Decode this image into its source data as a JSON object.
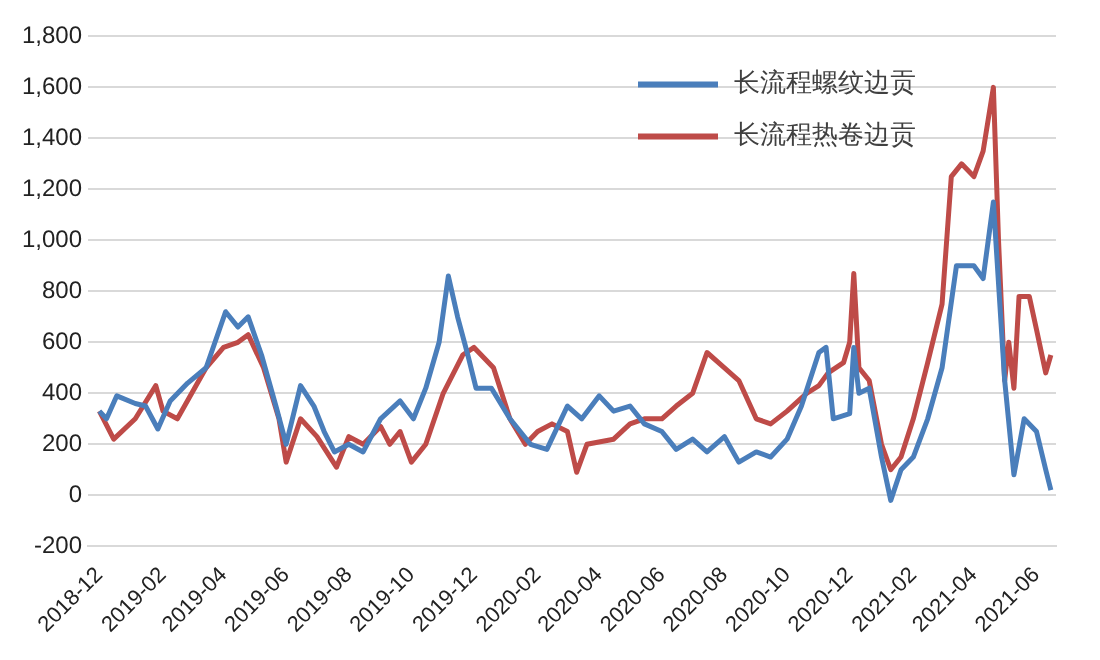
{
  "chart_data": {
    "type": "line",
    "xlim": [
      "2018-11-20",
      "2021-06-20"
    ],
    "xticks": [
      "2018-12",
      "2019-02",
      "2019-04",
      "2019-06",
      "2019-08",
      "2019-10",
      "2019-12",
      "2020-02",
      "2020-04",
      "2020-06",
      "2020-08",
      "2020-10",
      "2020-12",
      "2021-02",
      "2021-04",
      "2021-06"
    ],
    "ylim": [
      -200,
      1800
    ],
    "yticks": [
      -200,
      0,
      200,
      400,
      600,
      800,
      {
        "value": 1000,
        "label": "1,000"
      },
      {
        "value": 1200,
        "label": "1,200"
      },
      {
        "value": 1400,
        "label": "1,400"
      },
      {
        "value": 1600,
        "label": "1,600"
      },
      {
        "value": 1800,
        "label": "1,800"
      }
    ],
    "grid": "y",
    "legend": "top right",
    "marker": "none",
    "line_style": "solid",
    "series": [
      {
        "name": "长流程螺纹边贡",
        "color": "#4a7ebb",
        "x": [
          "2018-12-01",
          "2018-12-08",
          "2018-12-18",
          "2019-01-05",
          "2019-01-15",
          "2019-01-27",
          "2019-02-08",
          "2019-02-25",
          "2019-03-15",
          "2019-04-03",
          "2019-04-15",
          "2019-04-25",
          "2019-05-08",
          "2019-05-22",
          "2019-06-01",
          "2019-06-15",
          "2019-06-28",
          "2019-07-08",
          "2019-07-18",
          "2019-08-01",
          "2019-08-15",
          "2019-09-01",
          "2019-09-20",
          "2019-10-03",
          "2019-10-15",
          "2019-10-28",
          "2019-11-06",
          "2019-11-15",
          "2019-11-25",
          "2019-12-03",
          "2019-12-18",
          "2020-01-05",
          "2020-01-25",
          "2020-02-10",
          "2020-03-01",
          "2020-03-15",
          "2020-04-01",
          "2020-04-15",
          "2020-05-01",
          "2020-05-15",
          "2020-06-01",
          "2020-06-15",
          "2020-07-01",
          "2020-07-15",
          "2020-08-01",
          "2020-08-15",
          "2020-09-01",
          "2020-09-15",
          "2020-10-01",
          "2020-10-15",
          "2020-11-01",
          "2020-11-08",
          "2020-11-15",
          "2020-12-01",
          "2020-12-05",
          "2020-12-10",
          "2020-12-20",
          "2021-01-01",
          "2021-01-10",
          "2021-01-20",
          "2021-02-01",
          "2021-02-15",
          "2021-03-01",
          "2021-03-15",
          "2021-04-01",
          "2021-04-10",
          "2021-04-20",
          "2021-05-01",
          "2021-05-10",
          "2021-05-20",
          "2021-06-01",
          "2021-06-10",
          "2021-06-15"
        ],
        "values": [
          330,
          300,
          390,
          360,
          350,
          260,
          370,
          440,
          500,
          720,
          660,
          700,
          550,
          350,
          200,
          430,
          350,
          250,
          170,
          200,
          170,
          300,
          370,
          300,
          420,
          600,
          860,
          700,
          550,
          420,
          420,
          300,
          200,
          180,
          350,
          300,
          390,
          330,
          350,
          280,
          250,
          180,
          220,
          170,
          230,
          130,
          170,
          150,
          220,
          350,
          560,
          580,
          300,
          320,
          580,
          400,
          420,
          150,
          -20,
          100,
          150,
          300,
          500,
          900,
          900,
          850,
          1150,
          450,
          80,
          300,
          250,
          100,
          20
        ]
      },
      {
        "name": "长流程热卷边贡",
        "color": "#be4b48",
        "x": [
          "2018-12-01",
          "2018-12-15",
          "2019-01-05",
          "2019-01-25",
          "2019-02-01",
          "2019-02-15",
          "2019-03-01",
          "2019-03-15",
          "2019-04-01",
          "2019-04-15",
          "2019-04-25",
          "2019-05-10",
          "2019-05-25",
          "2019-06-01",
          "2019-06-15",
          "2019-07-01",
          "2019-07-20",
          "2019-08-01",
          "2019-08-15",
          "2019-09-01",
          "2019-09-10",
          "2019-09-20",
          "2019-10-01",
          "2019-10-15",
          "2019-11-01",
          "2019-11-20",
          "2019-12-01",
          "2019-12-20",
          "2020-01-05",
          "2020-01-20",
          "2020-02-01",
          "2020-02-15",
          "2020-03-01",
          "2020-03-10",
          "2020-03-20",
          "2020-04-15",
          "2020-05-01",
          "2020-05-15",
          "2020-06-01",
          "2020-06-15",
          "2020-07-01",
          "2020-07-15",
          "2020-08-01",
          "2020-08-15",
          "2020-09-01",
          "2020-09-15",
          "2020-10-01",
          "2020-10-20",
          "2020-11-01",
          "2020-11-10",
          "2020-11-25",
          "2020-12-01",
          "2020-12-05",
          "2020-12-10",
          "2020-12-20",
          "2021-01-01",
          "2021-01-10",
          "2021-01-20",
          "2021-02-01",
          "2021-02-15",
          "2021-03-01",
          "2021-03-10",
          "2021-03-20",
          "2021-04-01",
          "2021-04-10",
          "2021-04-20",
          "2021-04-25",
          "2021-05-01",
          "2021-05-05",
          "2021-05-10",
          "2021-05-15",
          "2021-05-25",
          "2021-06-01",
          "2021-06-10",
          "2021-06-15"
        ],
        "values": [
          330,
          220,
          300,
          430,
          330,
          300,
          400,
          500,
          580,
          600,
          630,
          500,
          300,
          130,
          300,
          230,
          110,
          230,
          200,
          270,
          200,
          250,
          130,
          200,
          400,
          550,
          580,
          500,
          300,
          200,
          250,
          280,
          250,
          90,
          200,
          220,
          280,
          300,
          300,
          350,
          400,
          560,
          500,
          450,
          300,
          280,
          330,
          400,
          430,
          480,
          520,
          600,
          870,
          500,
          450,
          200,
          100,
          150,
          300,
          520,
          750,
          1250,
          1300,
          1250,
          1350,
          1600,
          1000,
          450,
          600,
          420,
          780,
          780,
          650,
          480,
          550
        ]
      }
    ]
  }
}
